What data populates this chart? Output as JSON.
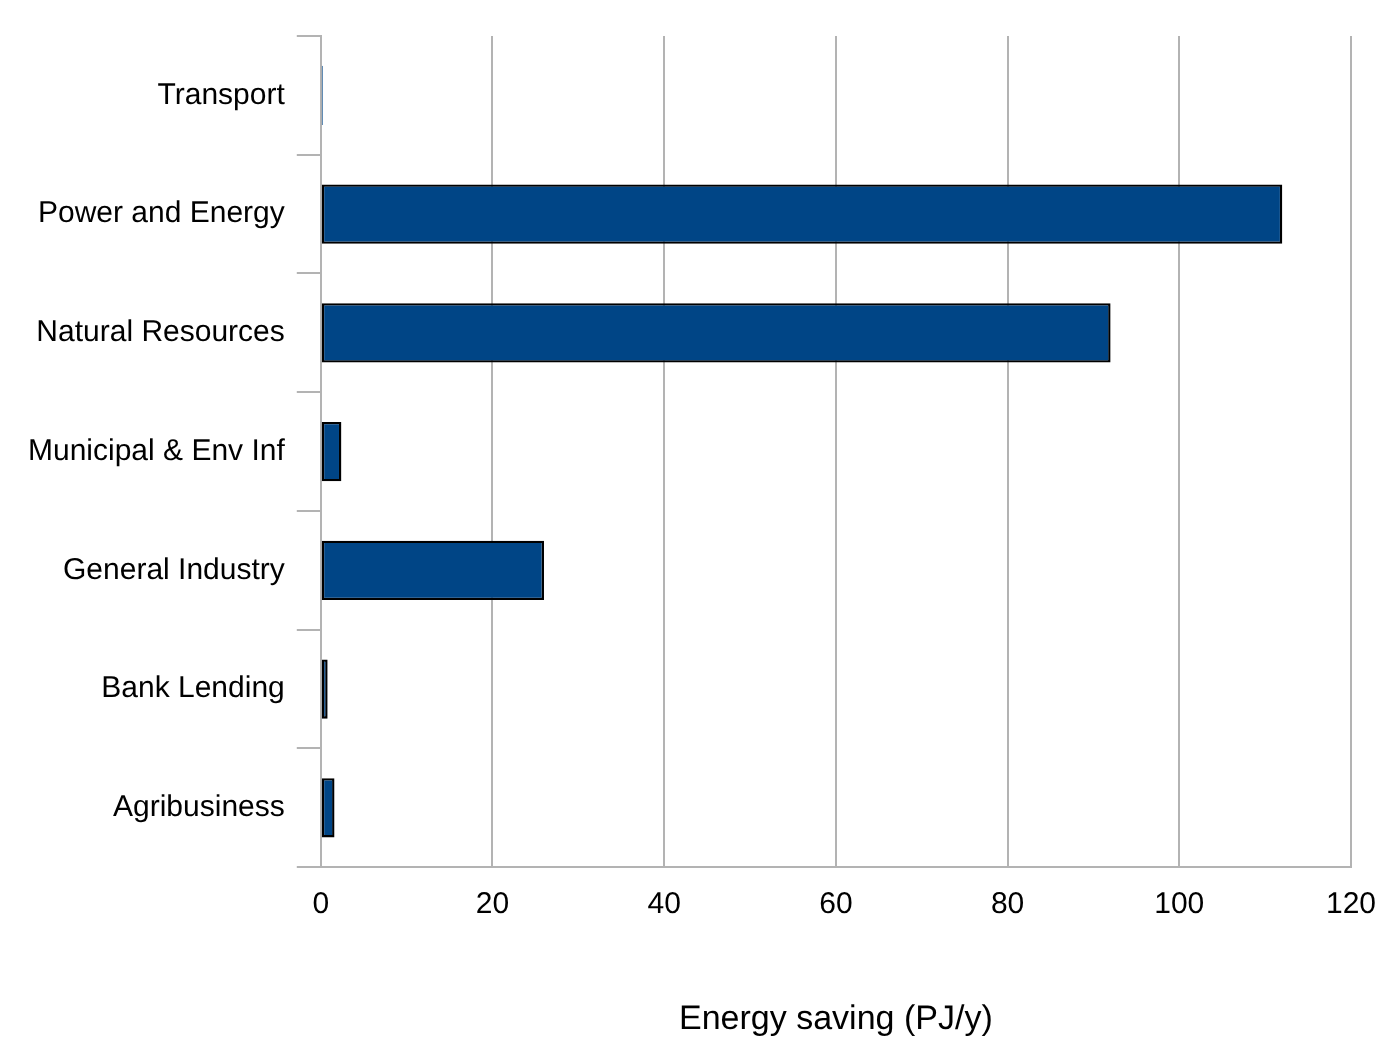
{
  "chart_data": {
    "type": "bar",
    "orientation": "horizontal",
    "xlabel": "Energy saving (PJ/y)",
    "categories": [
      "Transport",
      "Power and Energy",
      "Natural Resources",
      "Municipal & Env Inf",
      "General Industry",
      "Bank Lending",
      "Agribusiness"
    ],
    "values": [
      0.2,
      112,
      92,
      2.4,
      26,
      0.8,
      1.6
    ],
    "color": "#004586",
    "xlim": [
      0,
      120
    ],
    "xticks": [
      0,
      20,
      40,
      60,
      80,
      100,
      120
    ],
    "grid": "x",
    "legend": false
  }
}
